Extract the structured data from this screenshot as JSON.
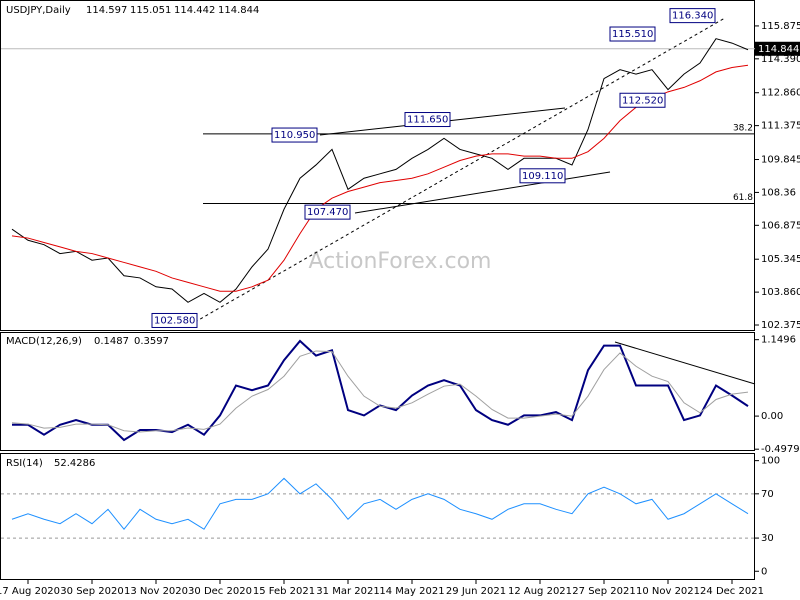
{
  "chart_data": [
    {
      "type": "line",
      "symbol": "USDJPY,Daily",
      "ohlc": [
        114.597,
        115.051,
        114.442,
        114.844
      ],
      "last_price": 114.844,
      "watermark": "ActionForex.com",
      "ylim": [
        102.15,
        117.0
      ],
      "yticks": [
        115.875,
        {
          "value": 114.39,
          "label": "114.390"
        },
        {
          "value": 112.86,
          "label": "112.860"
        },
        111.375,
        109.845,
        108.36,
        106.875,
        105.345,
        {
          "value": 103.86,
          "label": "103.860"
        },
        102.375
      ],
      "fib_levels": [
        {
          "ratio": 38.2,
          "price": 111.0
        },
        {
          "ratio": 61.8,
          "price": 107.86
        }
      ],
      "annotations": [
        {
          "value": 102.58,
          "label": "102.580"
        },
        {
          "value": 107.47,
          "label": "107.470"
        },
        {
          "value": 110.95,
          "label": "110.950"
        },
        {
          "value": 111.65,
          "label": "111.650"
        },
        {
          "value": 109.11,
          "label": "109.110"
        },
        {
          "value": 115.51,
          "label": "115.510"
        },
        {
          "value": 112.52,
          "label": "112.520"
        },
        {
          "value": 116.34,
          "label": "116.340"
        }
      ],
      "series": [
        {
          "color": "#000000",
          "values": [
            106.7,
            106.2,
            106.0,
            105.6,
            105.7,
            105.3,
            105.4,
            104.6,
            104.5,
            104.1,
            104.0,
            103.4,
            103.8,
            103.4,
            104.0,
            105.0,
            105.8,
            107.6,
            109.0,
            109.6,
            110.3,
            108.5,
            109.0,
            109.2,
            109.4,
            109.9,
            110.3,
            110.8,
            110.3,
            110.1,
            109.9,
            109.4,
            109.9,
            109.9,
            109.9,
            109.6,
            111.2,
            113.5,
            113.9,
            113.7,
            113.9,
            113.0,
            113.7,
            114.2,
            115.3,
            115.1,
            114.8
          ]
        },
        {
          "color": "#e00000",
          "values": [
            106.4,
            106.3,
            106.1,
            105.9,
            105.7,
            105.6,
            105.4,
            105.2,
            105.0,
            104.8,
            104.5,
            104.3,
            104.1,
            103.9,
            103.9,
            104.1,
            104.4,
            105.3,
            106.5,
            107.6,
            108.1,
            108.4,
            108.6,
            108.8,
            108.9,
            109.0,
            109.2,
            109.5,
            109.8,
            110.0,
            110.1,
            110.1,
            110.0,
            110.0,
            109.9,
            109.9,
            110.2,
            110.8,
            111.6,
            112.2,
            112.6,
            112.9,
            113.1,
            113.4,
            113.8,
            114.0,
            114.1
          ]
        }
      ]
    },
    {
      "type": "line",
      "label": "MACD(12,26,9)",
      "readings": [
        0.1487,
        0.3597
      ],
      "ylim": [
        -0.51,
        1.25
      ],
      "yticks": [
        1.1496,
        {
          "value": 0,
          "label": "0.00"
        },
        -0.4979
      ],
      "series": [
        {
          "color": "#000080",
          "values": [
            -0.13,
            -0.13,
            -0.28,
            -0.13,
            -0.06,
            -0.13,
            -0.13,
            -0.36,
            -0.21,
            -0.21,
            -0.24,
            -0.13,
            -0.28,
            0.01,
            0.46,
            0.39,
            0.46,
            0.84,
            1.13,
            0.91,
            0.99,
            0.09,
            0.01,
            0.16,
            0.09,
            0.31,
            0.46,
            0.54,
            0.46,
            0.09,
            -0.06,
            -0.13,
            0.01,
            0.01,
            0.06,
            -0.06,
            0.69,
            1.06,
            1.06,
            0.46,
            0.46,
            0.46,
            -0.06,
            0.01,
            0.46,
            0.31,
            0.15
          ]
        },
        {
          "color": "#a0a0a0",
          "values": [
            -0.1,
            -0.12,
            -0.18,
            -0.17,
            -0.12,
            -0.12,
            -0.13,
            -0.22,
            -0.24,
            -0.22,
            -0.22,
            -0.18,
            -0.2,
            -0.12,
            0.12,
            0.3,
            0.4,
            0.6,
            0.9,
            0.98,
            0.97,
            0.6,
            0.3,
            0.15,
            0.12,
            0.2,
            0.33,
            0.45,
            0.48,
            0.3,
            0.1,
            -0.03,
            -0.03,
            0.0,
            0.03,
            0.0,
            0.3,
            0.7,
            0.95,
            0.75,
            0.6,
            0.52,
            0.2,
            0.05,
            0.25,
            0.33,
            0.36
          ]
        }
      ]
    },
    {
      "type": "line",
      "label": "RSI(14)",
      "readings": [
        52.4286
      ],
      "ylim": [
        -7,
        106
      ],
      "yticks": [
        0,
        30,
        70,
        100
      ],
      "levels": [
        30,
        70
      ],
      "categories": [
        null,
        "17 Aug 2020",
        null,
        null,
        null,
        "30 Sep 2020",
        null,
        null,
        null,
        "13 Nov 2020",
        null,
        null,
        null,
        "30 Dec 2020",
        null,
        null,
        null,
        "15 Feb 2021",
        null,
        null,
        null,
        "31 Mar 2021",
        null,
        null,
        null,
        "14 May 2021",
        null,
        null,
        null,
        "29 Jun 2021",
        null,
        null,
        null,
        "12 Aug 2021",
        null,
        null,
        null,
        "27 Sep 2021",
        null,
        null,
        null,
        "10 Nov 2021",
        null,
        null,
        null,
        "24 Dec 2021",
        null
      ],
      "series": [
        {
          "color": "#1e90ff",
          "values": [
            47,
            52,
            47,
            43,
            52,
            43,
            56,
            38,
            56,
            47,
            43,
            47,
            38,
            61,
            65,
            65,
            70,
            84,
            70,
            79,
            65,
            47,
            61,
            65,
            56,
            65,
            70,
            65,
            56,
            52,
            47,
            56,
            61,
            61,
            56,
            52,
            70,
            76,
            70,
            61,
            65,
            47,
            52,
            61,
            70,
            61,
            52
          ]
        }
      ]
    }
  ]
}
